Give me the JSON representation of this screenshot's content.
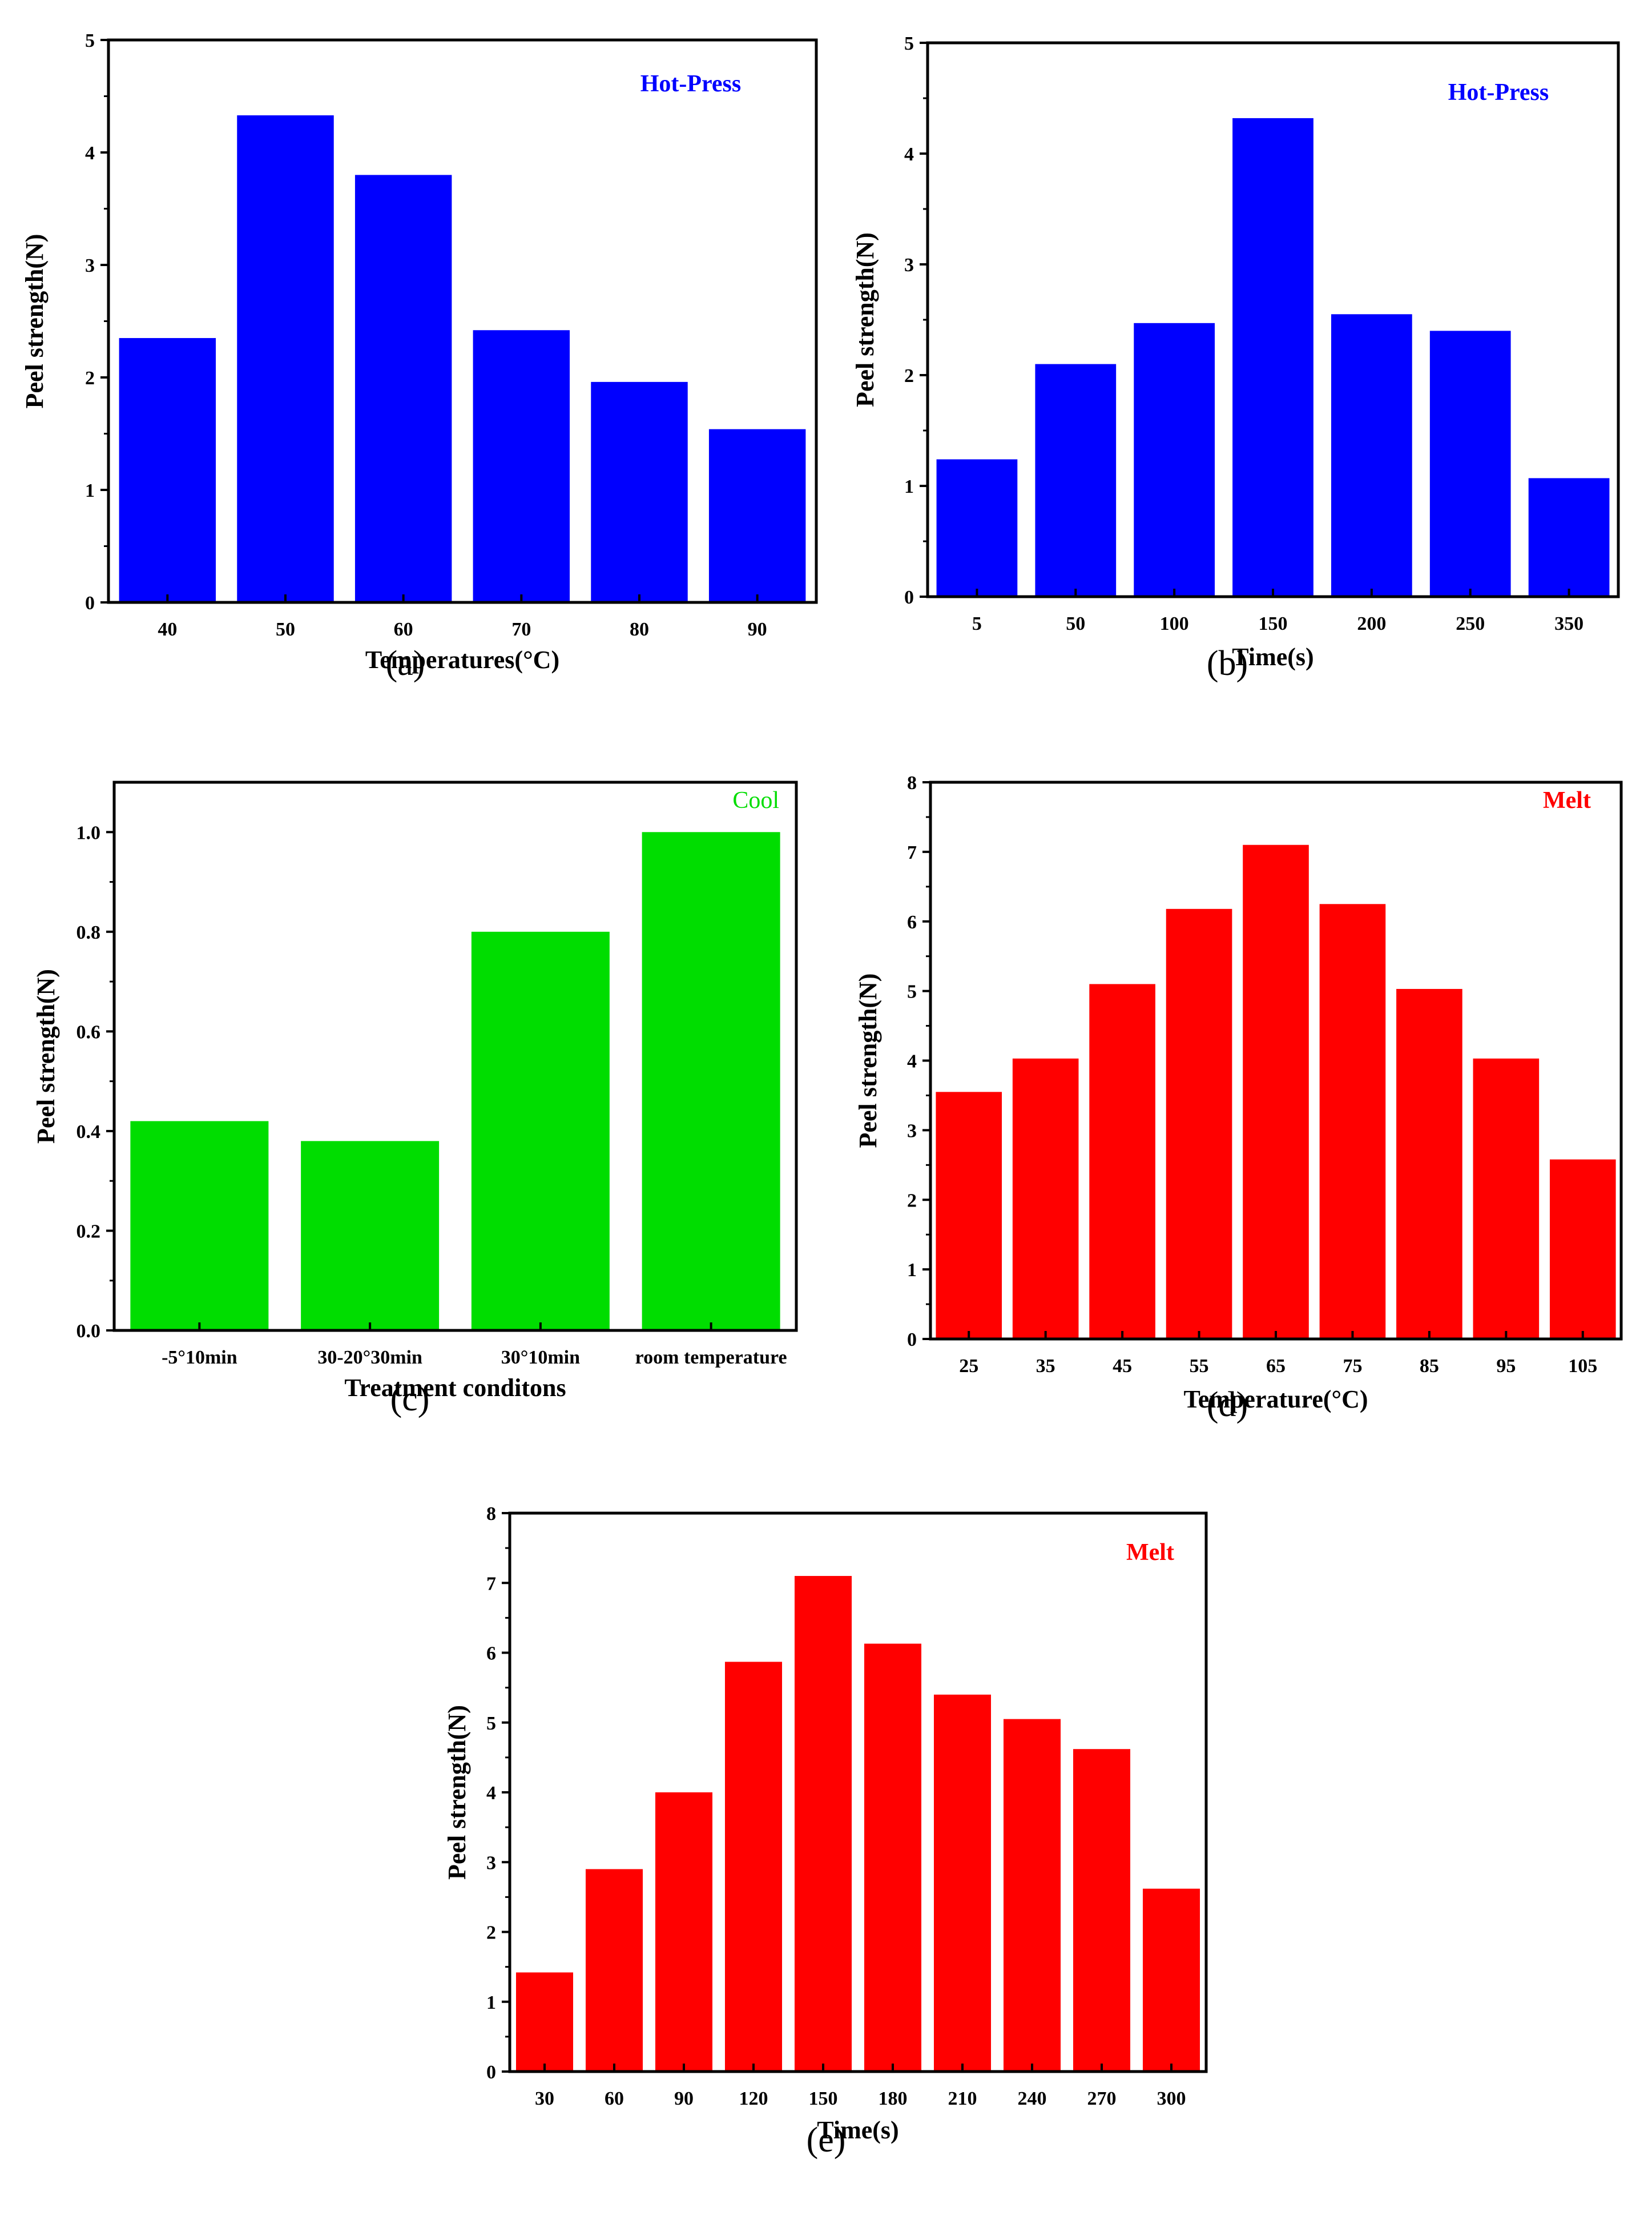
{
  "figure": {
    "colors": {
      "blue": "#0000ff",
      "green": "#00dd00",
      "red": "#ff0000",
      "axis": "#000000"
    }
  },
  "chart_data": [
    {
      "id": "a",
      "type": "bar",
      "panel_label": "(a)",
      "tag": "Hot-Press",
      "xlabel": "Temperatures(°C)",
      "ylabel": "Peel strength(N)",
      "categories": [
        "40",
        "50",
        "60",
        "70",
        "80",
        "90"
      ],
      "values": [
        2.35,
        4.33,
        3.8,
        2.42,
        1.96,
        1.54
      ],
      "ylim": [
        0,
        5
      ],
      "yticks": [
        "0",
        "1",
        "2",
        "3",
        "4",
        "5"
      ],
      "color": "#0000ff"
    },
    {
      "id": "b",
      "type": "bar",
      "panel_label": "(b)",
      "tag": "Hot-Press",
      "xlabel": "Time(s)",
      "ylabel": "Peel strength(N)",
      "categories": [
        "5",
        "50",
        "100",
        "150",
        "200",
        "250",
        "350"
      ],
      "values": [
        1.24,
        2.1,
        2.47,
        4.32,
        2.55,
        2.4,
        1.07
      ],
      "ylim": [
        0,
        5
      ],
      "yticks": [
        "0",
        "1",
        "2",
        "3",
        "4",
        "5"
      ],
      "color": "#0000ff"
    },
    {
      "id": "c",
      "type": "bar",
      "panel_label": "(c)",
      "tag": "Cool",
      "xlabel": "Treatment conditons",
      "ylabel": "Peel strength(N)",
      "categories": [
        "-5°10min",
        "30-20°30min",
        "30°10min",
        "room temperature"
      ],
      "values": [
        0.42,
        0.38,
        0.8,
        1.0
      ],
      "ylim": [
        0,
        1.1
      ],
      "yticks": [
        "0.0",
        "0.2",
        "0.4",
        "0.6",
        "0.8",
        "1.0"
      ],
      "color": "#00dd00"
    },
    {
      "id": "d",
      "type": "bar",
      "panel_label": "(d)",
      "tag": "Melt",
      "xlabel": "Temperature(°C)",
      "ylabel": "Peel strength(N)",
      "categories": [
        "25",
        "35",
        "45",
        "55",
        "65",
        "75",
        "85",
        "95",
        "105"
      ],
      "values": [
        3.55,
        4.03,
        5.1,
        6.18,
        7.1,
        6.25,
        5.03,
        4.03,
        2.58
      ],
      "ylim": [
        0,
        8
      ],
      "yticks": [
        "0",
        "1",
        "2",
        "3",
        "4",
        "5",
        "6",
        "7",
        "8"
      ],
      "color": "#ff0000"
    },
    {
      "id": "e",
      "type": "bar",
      "panel_label": "(e)",
      "tag": "Melt",
      "xlabel": "Time(s)",
      "ylabel": "Peel strength(N)",
      "categories": [
        "30",
        "60",
        "90",
        "120",
        "150",
        "180",
        "210",
        "240",
        "270",
        "300"
      ],
      "values": [
        1.42,
        2.9,
        4.0,
        5.87,
        7.1,
        6.13,
        5.4,
        5.05,
        4.62,
        2.62
      ],
      "ylim": [
        0,
        8
      ],
      "yticks": [
        "0",
        "1",
        "2",
        "3",
        "4",
        "5",
        "6",
        "7",
        "8"
      ],
      "color": "#ff0000"
    }
  ]
}
